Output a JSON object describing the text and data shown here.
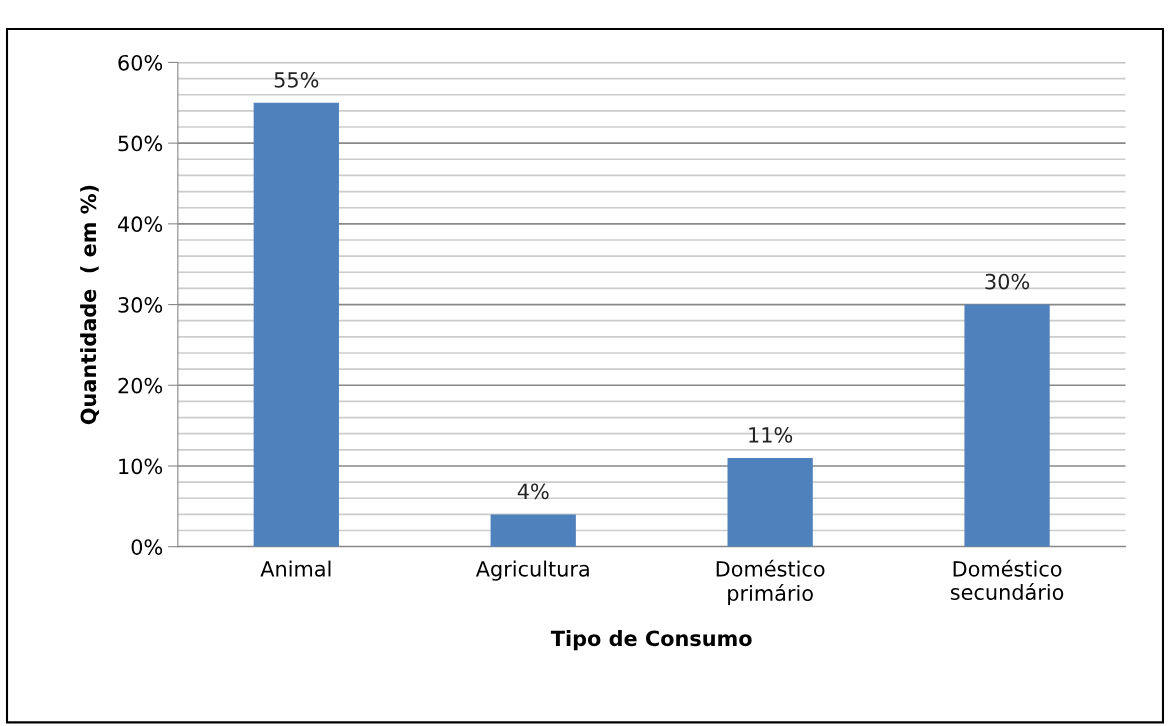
{
  "chart_data": {
    "type": "bar",
    "xlabel": "Tipo de Consumo",
    "ylabel": "Quantidade  ( em %)",
    "categories": [
      "Animal",
      "Agricultura",
      "Doméstico\nprimário",
      "Doméstico\nsecundário"
    ],
    "values": [
      55,
      4,
      11,
      30
    ],
    "color": "#4f81bd",
    "value_labels": [
      "55%",
      "4%",
      "11%",
      "30%"
    ],
    "ylim": [
      0,
      60
    ],
    "yticks": [
      {
        "value": 0,
        "label": "0%"
      },
      {
        "value": 2,
        "label": null
      },
      {
        "value": 4,
        "label": null
      },
      {
        "value": 6,
        "label": null
      },
      {
        "value": 8,
        "label": null
      },
      {
        "value": 10,
        "label": "10%"
      },
      {
        "value": 12,
        "label": null
      },
      {
        "value": 14,
        "label": null
      },
      {
        "value": 16,
        "label": null
      },
      {
        "value": 18,
        "label": null
      },
      {
        "value": 20,
        "label": "20%"
      },
      {
        "value": 22,
        "label": null
      },
      {
        "value": 24,
        "label": null
      },
      {
        "value": 26,
        "label": null
      },
      {
        "value": 28,
        "label": null
      },
      {
        "value": 30,
        "label": "30%"
      },
      {
        "value": 32,
        "label": null
      },
      {
        "value": 34,
        "label": null
      },
      {
        "value": 36,
        "label": null
      },
      {
        "value": 38,
        "label": null
      },
      {
        "value": 40,
        "label": "40%"
      },
      {
        "value": 42,
        "label": null
      },
      {
        "value": 44,
        "label": null
      },
      {
        "value": 46,
        "label": null
      },
      {
        "value": 48,
        "label": null
      },
      {
        "value": 50,
        "label": "50%"
      },
      {
        "value": 52,
        "label": null
      },
      {
        "value": 54,
        "label": null
      },
      {
        "value": 56,
        "label": null
      },
      {
        "value": 58,
        "label": null
      },
      {
        "value": 60,
        "label": "60%"
      }
    ],
    "grid": "y",
    "legend": false
  }
}
